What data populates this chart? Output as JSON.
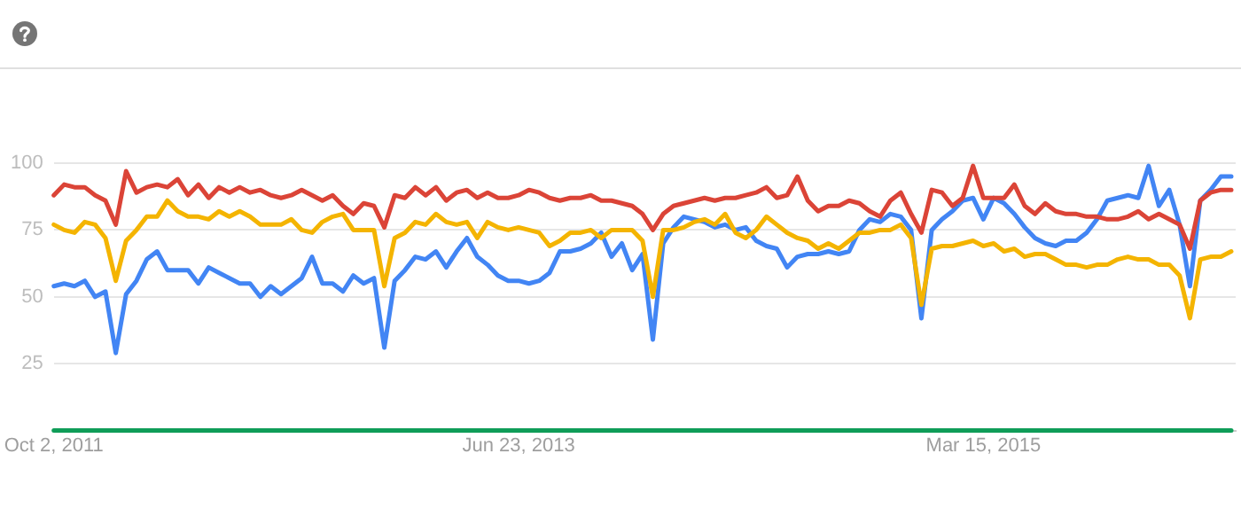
{
  "chart_data": {
    "type": "line",
    "x": [
      "2011-10-02",
      "2011-10-16",
      "2011-10-30",
      "2011-11-13",
      "2011-11-27",
      "2011-12-11",
      "2011-12-25",
      "2012-01-08",
      "2012-01-22",
      "2012-02-05",
      "2012-02-19",
      "2012-03-04",
      "2012-03-18",
      "2012-04-01",
      "2012-04-15",
      "2012-04-29",
      "2012-05-13",
      "2012-05-27",
      "2012-06-10",
      "2012-06-24",
      "2012-07-08",
      "2012-07-22",
      "2012-08-05",
      "2012-08-19",
      "2012-09-02",
      "2012-09-16",
      "2012-09-30",
      "2012-10-14",
      "2012-10-28",
      "2012-11-11",
      "2012-11-25",
      "2012-12-09",
      "2012-12-23",
      "2013-01-06",
      "2013-01-20",
      "2013-02-03",
      "2013-02-17",
      "2013-03-03",
      "2013-03-17",
      "2013-03-31",
      "2013-04-14",
      "2013-04-28",
      "2013-05-12",
      "2013-05-26",
      "2013-06-09",
      "2013-06-23",
      "2013-07-07",
      "2013-07-21",
      "2013-08-04",
      "2013-08-18",
      "2013-09-01",
      "2013-09-15",
      "2013-09-29",
      "2013-10-13",
      "2013-10-27",
      "2013-11-10",
      "2013-11-24",
      "2013-12-08",
      "2013-12-22",
      "2014-01-05",
      "2014-01-19",
      "2014-02-02",
      "2014-02-16",
      "2014-03-02",
      "2014-03-16",
      "2014-03-30",
      "2014-04-13",
      "2014-04-27",
      "2014-05-11",
      "2014-05-25",
      "2014-06-08",
      "2014-06-22",
      "2014-07-06",
      "2014-07-20",
      "2014-08-03",
      "2014-08-17",
      "2014-08-31",
      "2014-09-14",
      "2014-09-28",
      "2014-10-12",
      "2014-10-26",
      "2014-11-09",
      "2014-11-23",
      "2014-12-07",
      "2014-12-21",
      "2015-01-04",
      "2015-01-18",
      "2015-02-01",
      "2015-02-15",
      "2015-03-01",
      "2015-03-15",
      "2015-03-29",
      "2015-04-12",
      "2015-04-26",
      "2015-05-10",
      "2015-05-24",
      "2015-06-07",
      "2015-06-21",
      "2015-07-05",
      "2015-07-19",
      "2015-08-02",
      "2015-08-16",
      "2015-08-30",
      "2015-09-13",
      "2015-09-27",
      "2015-10-11",
      "2015-10-25",
      "2015-11-08",
      "2015-11-22",
      "2015-12-06",
      "2015-12-20",
      "2016-01-03",
      "2016-01-17",
      "2016-01-31",
      "2016-02-14"
    ],
    "series": [
      {
        "color": "#db4437",
        "values": [
          88,
          92,
          91,
          91,
          88,
          86,
          77,
          97,
          89,
          91,
          92,
          91,
          94,
          88,
          92,
          87,
          91,
          89,
          91,
          89,
          90,
          88,
          87,
          88,
          90,
          88,
          86,
          88,
          84,
          81,
          85,
          84,
          76,
          88,
          87,
          91,
          88,
          91,
          86,
          89,
          90,
          87,
          89,
          87,
          87,
          88,
          90,
          89,
          87,
          86,
          87,
          87,
          88,
          86,
          86,
          85,
          84,
          81,
          75,
          81,
          84,
          85,
          86,
          87,
          86,
          87,
          87,
          88,
          89,
          91,
          87,
          88,
          95,
          86,
          82,
          84,
          84,
          86,
          85,
          82,
          80,
          86,
          89,
          81,
          74,
          90,
          89,
          84,
          87,
          99,
          87,
          87,
          87,
          92,
          84,
          81,
          85,
          82,
          81,
          81,
          80,
          80,
          79,
          79,
          80,
          82,
          79,
          81,
          79,
          77,
          68,
          86,
          89,
          90,
          90
        ]
      },
      {
        "color": "#f4b400",
        "values": [
          77,
          75,
          74,
          78,
          77,
          72,
          56,
          71,
          75,
          80,
          80,
          86,
          82,
          80,
          80,
          79,
          82,
          80,
          82,
          80,
          77,
          77,
          77,
          79,
          75,
          74,
          78,
          80,
          81,
          75,
          75,
          75,
          54,
          72,
          74,
          78,
          77,
          81,
          78,
          77,
          78,
          72,
          78,
          76,
          75,
          76,
          75,
          74,
          69,
          71,
          74,
          74,
          75,
          72,
          75,
          75,
          75,
          71,
          50,
          75,
          75,
          76,
          78,
          79,
          77,
          81,
          74,
          72,
          75,
          80,
          77,
          74,
          72,
          71,
          68,
          70,
          68,
          71,
          74,
          74,
          75,
          75,
          77,
          72,
          47,
          68,
          69,
          69,
          70,
          71,
          69,
          70,
          67,
          68,
          65,
          66,
          66,
          64,
          62,
          62,
          61,
          62,
          62,
          64,
          65,
          64,
          64,
          62,
          62,
          58,
          42,
          64,
          65,
          65,
          67
        ]
      },
      {
        "color": "#4285f4",
        "values": [
          54,
          55,
          54,
          56,
          50,
          52,
          29,
          51,
          56,
          64,
          67,
          60,
          60,
          60,
          55,
          61,
          59,
          57,
          55,
          55,
          50,
          54,
          51,
          54,
          57,
          65,
          55,
          55,
          52,
          58,
          55,
          57,
          31,
          56,
          60,
          65,
          64,
          67,
          61,
          67,
          72,
          65,
          62,
          58,
          56,
          56,
          55,
          56,
          59,
          67,
          67,
          68,
          70,
          74,
          65,
          70,
          60,
          66,
          34,
          70,
          76,
          80,
          79,
          78,
          76,
          77,
          75,
          76,
          71,
          69,
          68,
          61,
          65,
          66,
          66,
          67,
          66,
          67,
          75,
          79,
          78,
          81,
          80,
          75,
          42,
          75,
          79,
          82,
          86,
          87,
          79,
          87,
          85,
          81,
          76,
          72,
          70,
          69,
          71,
          71,
          74,
          79,
          86,
          87,
          88,
          87,
          99,
          84,
          90,
          77,
          54,
          86,
          90,
          95,
          95
        ]
      },
      {
        "color": "#0f9d58",
        "values": [
          0,
          0,
          0,
          0,
          0,
          0,
          0,
          0,
          0,
          0,
          0,
          0,
          0,
          0,
          0,
          0,
          0,
          0,
          0,
          0,
          0,
          0,
          0,
          0,
          0,
          0,
          0,
          0,
          0,
          0,
          0,
          0,
          0,
          0,
          0,
          0,
          0,
          0,
          0,
          0,
          0,
          0,
          0,
          0,
          0,
          0,
          0,
          0,
          0,
          0,
          0,
          0,
          0,
          0,
          0,
          0,
          0,
          0,
          0,
          0,
          0,
          0,
          0,
          0,
          0,
          0,
          0,
          0,
          0,
          0,
          0,
          0,
          0,
          0,
          0,
          0,
          0,
          0,
          0,
          0,
          0,
          0,
          0,
          0,
          0,
          0,
          0,
          0,
          0,
          0,
          0,
          0,
          0,
          0,
          0,
          0,
          0,
          0,
          0,
          0,
          0,
          0,
          0,
          0,
          0,
          0,
          0,
          0,
          0,
          0,
          0,
          0,
          0,
          0,
          0
        ]
      }
    ],
    "xlim": [
      "2011-10-02",
      "2016-02-20"
    ],
    "xticks": [
      {
        "value": "2011-10-02",
        "label": "Oct 2, 2011"
      },
      {
        "value": "2013-06-23",
        "label": "Jun 23, 2013"
      },
      {
        "value": "2015-03-15",
        "label": "Mar 15, 2015"
      }
    ],
    "ylim": [
      0,
      100
    ],
    "yticks": [
      25,
      50,
      75,
      100
    ],
    "grid": "y",
    "marker": "none",
    "line_style": "solid",
    "legend": false
  }
}
